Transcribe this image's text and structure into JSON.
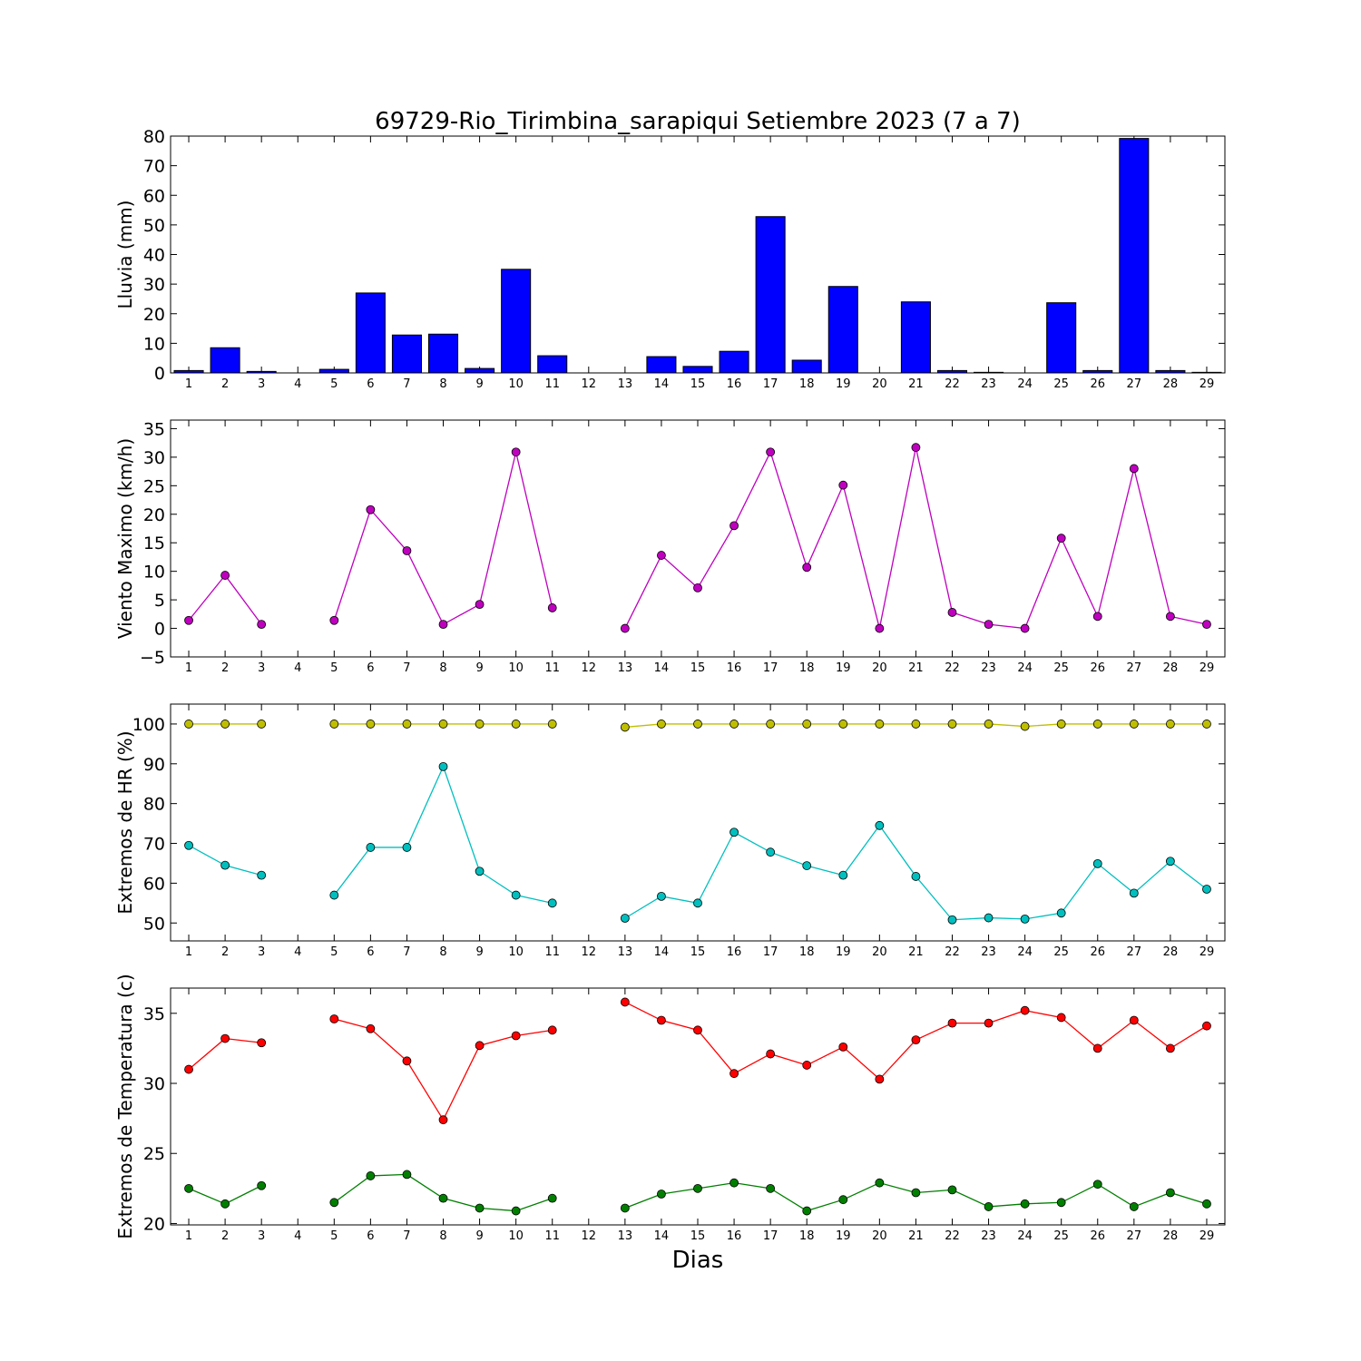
{
  "chart_data": [
    {
      "id": "rain",
      "type": "bar",
      "title": "69729-Rio_Tirimbina_sarapiqui Setiembre 2023  (7 a 7)",
      "ylabel": "Lluvia (mm)",
      "ylim": [
        0,
        80
      ],
      "yticks": [
        0,
        10,
        20,
        30,
        40,
        50,
        60,
        70,
        80
      ],
      "x": [
        1,
        2,
        3,
        4,
        5,
        6,
        7,
        8,
        9,
        10,
        11,
        12,
        13,
        14,
        15,
        16,
        17,
        18,
        19,
        20,
        21,
        22,
        23,
        24,
        25,
        26,
        27,
        28,
        29
      ],
      "color": "#0000ff",
      "series": [
        {
          "values": [
            0.8,
            8.5,
            0.5,
            null,
            1.2,
            27.0,
            12.8,
            13.1,
            1.5,
            35.0,
            5.8,
            null,
            null,
            5.5,
            2.2,
            7.3,
            52.8,
            4.3,
            29.2,
            null,
            24.0,
            0.8,
            0.2,
            null,
            23.7,
            0.8,
            79.2,
            0.8,
            0.2
          ]
        }
      ]
    },
    {
      "id": "wind",
      "type": "line",
      "ylabel": "Viento Maximo (km/h)",
      "ylim": [
        -5,
        36.5
      ],
      "yticks": [
        -5,
        0,
        5,
        10,
        15,
        20,
        25,
        30,
        35
      ],
      "x": [
        1,
        2,
        3,
        4,
        5,
        6,
        7,
        8,
        9,
        10,
        11,
        12,
        13,
        14,
        15,
        16,
        17,
        18,
        19,
        20,
        21,
        22,
        23,
        24,
        25,
        26,
        27,
        28,
        29
      ],
      "series": [
        {
          "color": "#bf00bf",
          "values": [
            1.4,
            9.3,
            0.7,
            null,
            1.4,
            20.8,
            13.6,
            0.7,
            4.2,
            30.9,
            3.6,
            null,
            0.0,
            12.8,
            7.1,
            18.0,
            30.9,
            10.7,
            25.1,
            0.0,
            31.7,
            2.8,
            0.7,
            0.0,
            15.8,
            2.1,
            28.0,
            2.1,
            0.7
          ]
        }
      ]
    },
    {
      "id": "humidity",
      "type": "line",
      "ylabel": "Extremos de HR (%)",
      "ylim": [
        45.5,
        105
      ],
      "yticks": [
        50,
        60,
        70,
        80,
        90,
        100
      ],
      "x": [
        1,
        2,
        3,
        4,
        5,
        6,
        7,
        8,
        9,
        10,
        11,
        12,
        13,
        14,
        15,
        16,
        17,
        18,
        19,
        20,
        21,
        22,
        23,
        24,
        25,
        26,
        27,
        28,
        29
      ],
      "series": [
        {
          "color": "#bfbf00",
          "values": [
            100,
            100,
            100,
            null,
            100,
            100,
            100,
            100,
            100,
            100,
            100,
            null,
            99.2,
            100,
            100,
            100,
            100,
            100,
            100,
            100,
            100,
            100,
            100,
            99.4,
            100,
            100,
            100,
            100,
            100
          ]
        },
        {
          "color": "#00bfbf",
          "values": [
            69.5,
            64.5,
            62.0,
            null,
            57.0,
            69.0,
            69.0,
            89.3,
            63.0,
            57.0,
            55.0,
            null,
            51.2,
            56.7,
            55.0,
            72.8,
            67.8,
            64.4,
            62.0,
            74.5,
            61.7,
            50.8,
            51.3,
            51.0,
            52.5,
            64.9,
            57.5,
            65.5,
            58.5
          ]
        }
      ]
    },
    {
      "id": "temperature",
      "type": "line",
      "ylabel": "Extremos de Temperatura (c)",
      "ylim": [
        19.9,
        36.8
      ],
      "yticks": [
        20,
        25,
        30,
        35
      ],
      "xlabel": "Dias",
      "x": [
        1,
        2,
        3,
        4,
        5,
        6,
        7,
        8,
        9,
        10,
        11,
        12,
        13,
        14,
        15,
        16,
        17,
        18,
        19,
        20,
        21,
        22,
        23,
        24,
        25,
        26,
        27,
        28,
        29
      ],
      "series": [
        {
          "color": "#ff0000",
          "values": [
            31.0,
            33.2,
            32.9,
            null,
            34.6,
            33.9,
            31.6,
            27.4,
            32.7,
            33.4,
            33.8,
            null,
            35.8,
            34.5,
            33.8,
            30.7,
            32.1,
            31.3,
            32.6,
            30.3,
            33.1,
            34.3,
            34.3,
            35.2,
            34.7,
            32.5,
            34.5,
            32.5,
            34.1
          ]
        },
        {
          "color": "#007f00",
          "values": [
            22.5,
            21.4,
            22.7,
            null,
            21.5,
            23.4,
            23.5,
            21.8,
            21.1,
            20.9,
            21.8,
            null,
            21.1,
            22.1,
            22.5,
            22.9,
            22.5,
            20.9,
            21.7,
            22.9,
            22.2,
            22.4,
            21.2,
            21.4,
            21.5,
            22.8,
            21.2,
            22.2,
            21.4
          ]
        }
      ]
    }
  ]
}
